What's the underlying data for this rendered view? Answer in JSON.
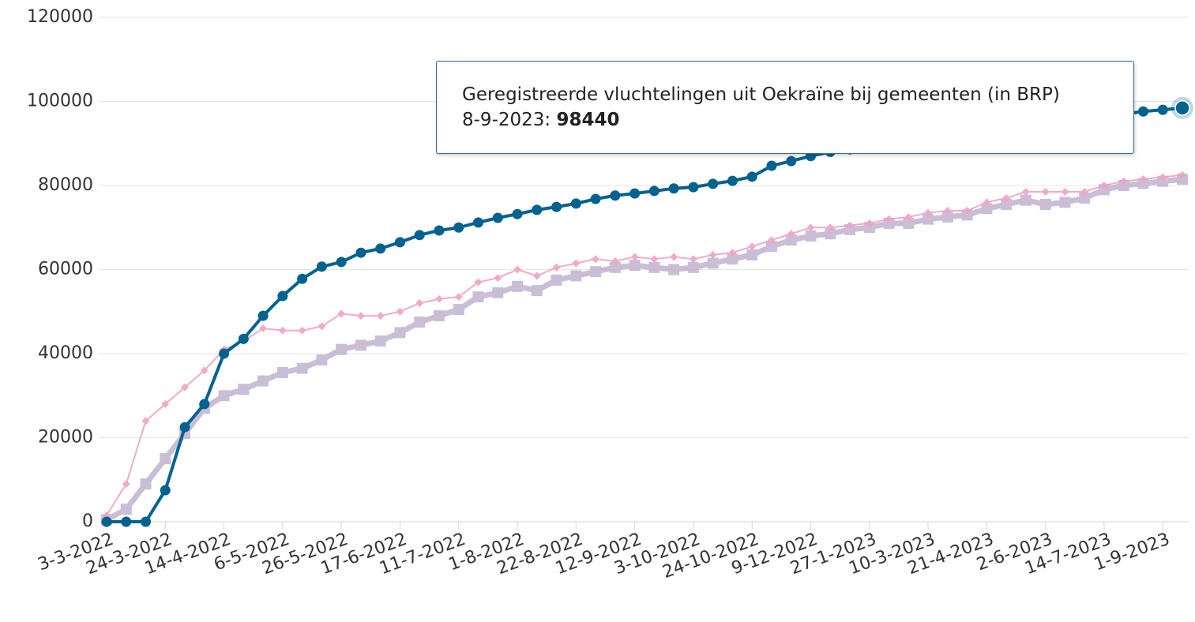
{
  "chart_data": {
    "type": "line",
    "categories": [
      "3-3-2022",
      null,
      null,
      "24-3-2022",
      null,
      null,
      "14-4-2022",
      null,
      null,
      "6-5-2022",
      null,
      null,
      "26-5-2022",
      null,
      null,
      "17-6-2022",
      null,
      null,
      "11-7-2022",
      null,
      null,
      "1-8-2022",
      null,
      null,
      "22-8-2022",
      null,
      null,
      "12-9-2022",
      null,
      null,
      "3-10-2022",
      null,
      null,
      "24-10-2022",
      null,
      null,
      "9-12-2022",
      null,
      null,
      "27-1-2023",
      null,
      null,
      "10-3-2023",
      null,
      null,
      "21-4-2023",
      null,
      null,
      "2-6-2023",
      null,
      null,
      "14-7-2023",
      null,
      null,
      "1-9-2023",
      null
    ],
    "series": [
      {
        "color": "#b9a9c9",
        "marker": "square",
        "values": [
          500,
          3000,
          9000,
          15000,
          21000,
          27000,
          30000,
          31500,
          33500,
          35500,
          36500,
          38500,
          41000,
          42000,
          43000,
          45000,
          47500,
          49000,
          50500,
          53500,
          54500,
          56000,
          55000,
          57500,
          58500,
          59500,
          60500,
          61000,
          60500,
          60000,
          60500,
          61500,
          62500,
          63500,
          65500,
          67000,
          68000,
          68500,
          69500,
          70000,
          71000,
          71000,
          72000,
          72500,
          73000,
          74500,
          75500,
          76500,
          75500,
          76000,
          77000,
          79000,
          80000,
          80500,
          81000,
          81500
        ]
      },
      {
        "color": "#f0a3c4",
        "marker": "diamond",
        "values": [
          1500,
          9000,
          24000,
          28000,
          32000,
          36000,
          41000,
          43000,
          46000,
          45500,
          45500,
          46500,
          49500,
          49000,
          49000,
          50000,
          52000,
          53000,
          53500,
          57000,
          58000,
          60000,
          58500,
          60500,
          61500,
          62500,
          62000,
          63000,
          62500,
          63000,
          62500,
          63500,
          64000,
          65500,
          67000,
          68500,
          70000,
          70000,
          70500,
          71000,
          72000,
          72500,
          73500,
          74000,
          74000,
          76000,
          77000,
          78500,
          78500,
          78500,
          78500,
          80000,
          81000,
          81500,
          82000,
          82500
        ]
      },
      {
        "name": "Geregistreerde vluchtelingen uit Oekraïne bij gemeenten (in BRP)",
        "color": "#00628f",
        "marker": "circle",
        "values": [
          0,
          0,
          0,
          7500,
          22500,
          28000,
          40000,
          43500,
          49000,
          53700,
          57800,
          60700,
          61800,
          64000,
          65000,
          66500,
          68200,
          69300,
          70000,
          71200,
          72300,
          73200,
          74200,
          74900,
          75700,
          76800,
          77600,
          78100,
          78700,
          79300,
          79600,
          80400,
          81100,
          82100,
          84700,
          85800,
          87000,
          88000,
          88600,
          89200,
          89800,
          90400,
          91000,
          91600,
          92200,
          92800,
          93400,
          94000,
          94600,
          95200,
          95800,
          96400,
          97000,
          97600,
          98000,
          98440
        ]
      }
    ],
    "ylim": [
      0,
      120000
    ],
    "yticks": [
      0,
      20000,
      40000,
      60000,
      80000,
      100000,
      120000
    ],
    "grid": true,
    "tooltip": {
      "date": "8-9-2023",
      "separator": ":"
    }
  }
}
